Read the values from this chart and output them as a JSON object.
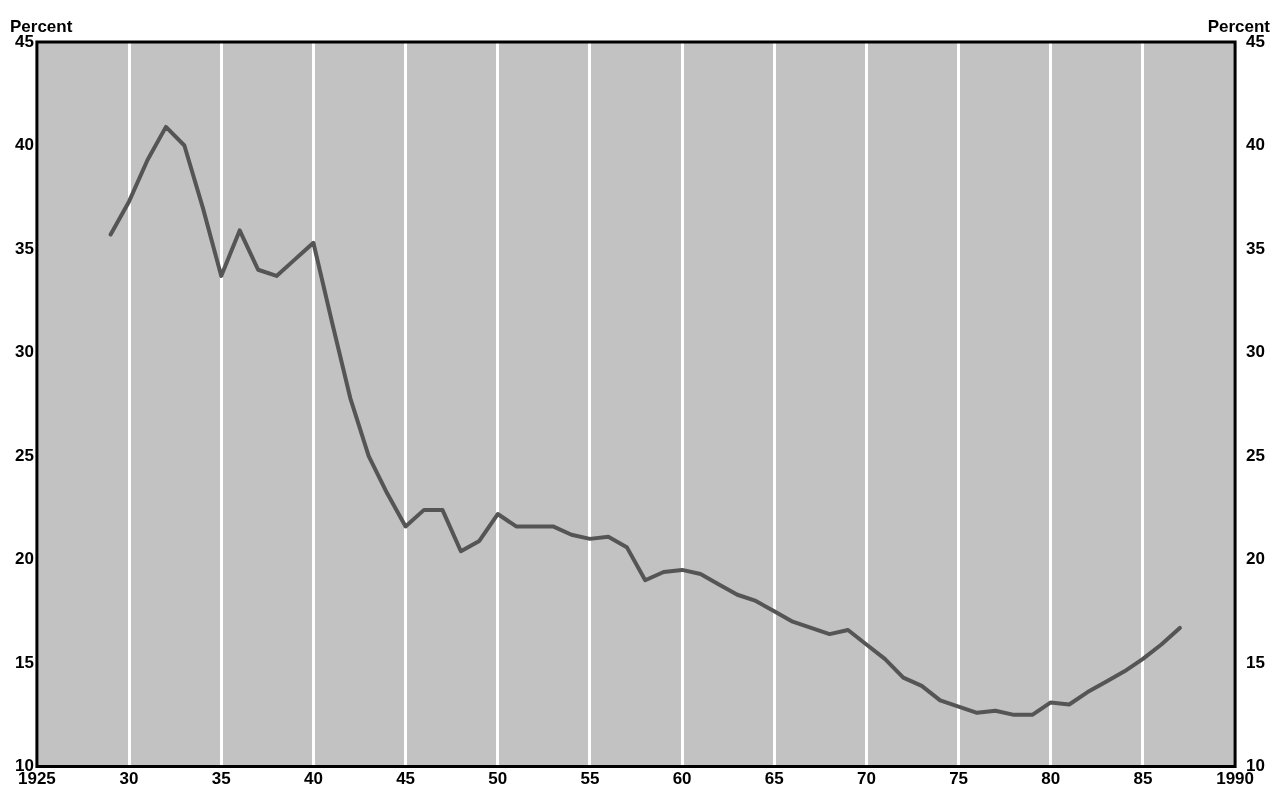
{
  "chart_data": {
    "type": "line",
    "ylabel": "Percent",
    "y2label": "Percent",
    "x": [
      1929,
      1930,
      1931,
      1932,
      1933,
      1934,
      1935,
      1936,
      1937,
      1938,
      1939,
      1940,
      1941,
      1942,
      1943,
      1944,
      1945,
      1946,
      1947,
      1948,
      1949,
      1950,
      1951,
      1952,
      1953,
      1954,
      1955,
      1956,
      1957,
      1958,
      1959,
      1960,
      1961,
      1962,
      1963,
      1964,
      1965,
      1966,
      1967,
      1968,
      1969,
      1970,
      1971,
      1972,
      1973,
      1974,
      1975,
      1976,
      1977,
      1978,
      1979,
      1980,
      1981,
      1982,
      1983,
      1984,
      1985,
      1986,
      1987
    ],
    "series": [
      {
        "color": "#555555",
        "values": [
          35.7,
          37.3,
          39.3,
          40.9,
          40.0,
          37.0,
          33.7,
          35.9,
          34.0,
          33.7,
          34.5,
          35.3,
          31.5,
          27.8,
          25.0,
          23.2,
          21.6,
          22.4,
          22.4,
          20.4,
          20.9,
          22.2,
          21.6,
          21.6,
          21.6,
          21.2,
          21.0,
          21.1,
          20.6,
          19.0,
          19.4,
          19.5,
          19.3,
          18.8,
          18.3,
          18.0,
          17.5,
          17.0,
          16.7,
          16.4,
          16.6,
          15.9,
          15.2,
          14.3,
          13.9,
          13.2,
          12.9,
          12.6,
          12.7,
          12.5,
          12.5,
          13.1,
          13.0,
          13.6,
          14.1,
          14.6,
          15.2,
          15.9,
          16.7
        ]
      }
    ],
    "xlim": [
      1925,
      1990
    ],
    "xticks": [
      {
        "value": 1925,
        "label": "1925"
      },
      {
        "value": 1930,
        "label": "30"
      },
      {
        "value": 1935,
        "label": "35"
      },
      {
        "value": 1940,
        "label": "40"
      },
      {
        "value": 1945,
        "label": "45"
      },
      {
        "value": 1950,
        "label": "50"
      },
      {
        "value": 1955,
        "label": "55"
      },
      {
        "value": 1960,
        "label": "60"
      },
      {
        "value": 1965,
        "label": "65"
      },
      {
        "value": 1970,
        "label": "70"
      },
      {
        "value": 1975,
        "label": "75"
      },
      {
        "value": 1980,
        "label": "80"
      },
      {
        "value": 1985,
        "label": "85"
      },
      {
        "value": 1990,
        "label": "1990"
      }
    ],
    "ylim": [
      10,
      45
    ],
    "yticks": [
      10,
      15,
      20,
      25,
      30,
      35,
      40,
      45
    ],
    "y2lim": [
      10,
      45
    ],
    "y2ticks": [
      10,
      15,
      20,
      25,
      30,
      35,
      40,
      45
    ],
    "grid": "x",
    "legend": false,
    "marker": "none",
    "line_style": "solid"
  }
}
